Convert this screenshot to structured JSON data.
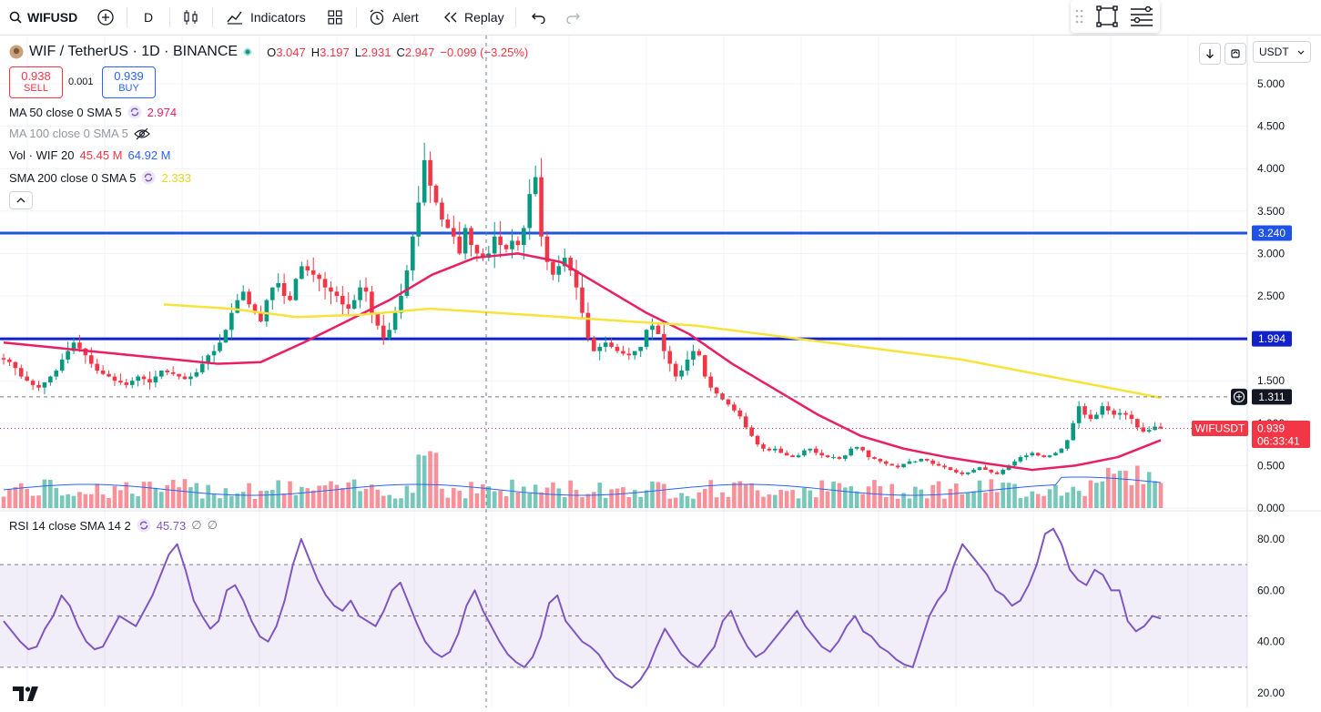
{
  "toolbar": {
    "symbol": "WIFUSD",
    "interval": "D",
    "indicators_label": "Indicators",
    "alert_label": "Alert",
    "replay_label": "Replay"
  },
  "header": {
    "title": "WIF / TetherUS · 1D · BINANCE",
    "o_label": "O",
    "o_value": "3.047",
    "h_label": "H",
    "h_value": "3.197",
    "l_label": "L",
    "l_value": "2.931",
    "c_label": "C",
    "c_value": "2.947",
    "change": "−0.099 (−3.25%)",
    "currency": "USDT"
  },
  "trade": {
    "sell_price": "0.938",
    "sell_label": "SELL",
    "spread": "0.001",
    "buy_price": "0.939",
    "buy_label": "BUY"
  },
  "legends": {
    "ma50": "MA 50 close 0 SMA 5",
    "ma50_value": "2.974",
    "ma100": "MA 100 close 0 SMA 5",
    "vol": "Vol · WIF 20",
    "vol_value1": "45.45 M",
    "vol_value2": "64.92 M",
    "sma200": "SMA 200 close 0 SMA 5",
    "sma200_value": "2.333",
    "rsi": "RSI 14 close SMA 14 2",
    "rsi_value": "45.73",
    "rsi_na1": "∅",
    "rsi_na2": "∅"
  },
  "price_axis": [
    "5.000",
    "4.500",
    "4.000",
    "3.500",
    "3.000",
    "2.500",
    "1.500",
    "1.000",
    "0.500",
    "0.000"
  ],
  "rsi_axis": [
    "80.00",
    "60.00",
    "40.00",
    "20.00"
  ],
  "tags": {
    "line_high": "3.240",
    "line_low": "1.994",
    "crosshair": "1.311",
    "symbol_tag": "WIFUSDT",
    "last_price": "0.939",
    "countdown": "06:33:41"
  },
  "colors": {
    "up": "#089981",
    "down": "#f23645",
    "ma50": "#e91e63",
    "sma200": "#ffeb3b",
    "hline": "#2962ff",
    "rsi": "#7e57c2",
    "rsi_band": "#7e57c2"
  },
  "chart_data": {
    "type": "candlestick",
    "title": "WIF / TetherUS · 1D · BINANCE",
    "horizontal_lines": [
      3.24,
      1.994
    ],
    "price_range": [
      0,
      5.2
    ],
    "close_series_approx": [
      1.75,
      1.72,
      1.65,
      1.55,
      1.5,
      1.45,
      1.42,
      1.48,
      1.55,
      1.62,
      1.75,
      1.85,
      1.95,
      1.88,
      1.8,
      1.7,
      1.62,
      1.58,
      1.55,
      1.5,
      1.48,
      1.45,
      1.5,
      1.55,
      1.52,
      1.48,
      1.55,
      1.62,
      1.6,
      1.58,
      1.55,
      1.52,
      1.55,
      1.6,
      1.7,
      1.8,
      1.85,
      1.95,
      2.1,
      2.3,
      2.45,
      2.55,
      2.4,
      2.3,
      2.2,
      2.45,
      2.6,
      2.65,
      2.5,
      2.45,
      2.7,
      2.85,
      2.8,
      2.75,
      2.7,
      2.6,
      2.55,
      2.5,
      2.4,
      2.35,
      2.45,
      2.6,
      2.55,
      2.3,
      2.15,
      2.0,
      2.1,
      2.3,
      2.5,
      2.8,
      3.2,
      3.6,
      4.1,
      3.8,
      3.6,
      3.4,
      3.3,
      3.2,
      3.0,
      3.3,
      3.1,
      3.0,
      2.95,
      3.0,
      3.2,
      3.1,
      3.05,
      3.15,
      3.1,
      3.3,
      3.7,
      3.9,
      3.2,
      2.9,
      2.75,
      2.85,
      2.95,
      2.8,
      2.6,
      2.3,
      2.0,
      1.85,
      1.9,
      1.95,
      1.9,
      1.85,
      1.82,
      1.8,
      1.85,
      1.9,
      2.1,
      2.15,
      2.05,
      1.85,
      1.7,
      1.55,
      1.62,
      1.75,
      1.85,
      1.8,
      1.55,
      1.42,
      1.35,
      1.28,
      1.22,
      1.15,
      1.08,
      0.95,
      0.85,
      0.75,
      0.7,
      0.68,
      0.7,
      0.65,
      0.62,
      0.6,
      0.62,
      0.68,
      0.7,
      0.65,
      0.62,
      0.6,
      0.6,
      0.58,
      0.62,
      0.7,
      0.72,
      0.68,
      0.6,
      0.58,
      0.55,
      0.52,
      0.5,
      0.48,
      0.52,
      0.55,
      0.55,
      0.58,
      0.56,
      0.52,
      0.5,
      0.48,
      0.45,
      0.42,
      0.4,
      0.42,
      0.45,
      0.48,
      0.45,
      0.42,
      0.4,
      0.45,
      0.5,
      0.55,
      0.6,
      0.62,
      0.65,
      0.62,
      0.6,
      0.62,
      0.65,
      0.7,
      0.8,
      1.0,
      1.2,
      1.1,
      1.05,
      1.1,
      1.2,
      1.15,
      1.1,
      1.12,
      1.1,
      1.05,
      0.95,
      0.9,
      0.92,
      0.96,
      0.939
    ],
    "ma50_approx": [
      1.95,
      1.9,
      1.85,
      1.8,
      1.75,
      1.7,
      1.72,
      1.95,
      2.2,
      2.45,
      2.75,
      2.95,
      3.0,
      2.9,
      2.6,
      2.3,
      2.05,
      1.7,
      1.4,
      1.1,
      0.85,
      0.7,
      0.6,
      0.52,
      0.45,
      0.5,
      0.6,
      0.8
    ],
    "sma200_approx": [
      2.4,
      2.35,
      2.25,
      2.28,
      2.35,
      2.3,
      2.25,
      2.2,
      2.15,
      2.05,
      1.95,
      1.85,
      1.75,
      1.6,
      1.45,
      1.3
    ],
    "rsi_approx": [
      48,
      44,
      40,
      37,
      38,
      45,
      50,
      58,
      54,
      46,
      40,
      37,
      38,
      44,
      50,
      48,
      46,
      52,
      58,
      66,
      74,
      78,
      68,
      56,
      50,
      45,
      48,
      60,
      62,
      56,
      48,
      42,
      40,
      46,
      56,
      70,
      80,
      72,
      64,
      58,
      54,
      52,
      56,
      50,
      48,
      46,
      52,
      60,
      63,
      55,
      47,
      40,
      36,
      34,
      36,
      43,
      54,
      60,
      52,
      46,
      40,
      35,
      32,
      30,
      34,
      42,
      55,
      58,
      48,
      44,
      40,
      38,
      35,
      30,
      26,
      24,
      22,
      25,
      30,
      38,
      45,
      40,
      35,
      32,
      30,
      34,
      38,
      48,
      52,
      44,
      38,
      34,
      36,
      40,
      44,
      48,
      52,
      46,
      42,
      38,
      36,
      40,
      46,
      50,
      44,
      42,
      38,
      36,
      33,
      31,
      30,
      40,
      50,
      56,
      60,
      70,
      78,
      74,
      70,
      66,
      60,
      58,
      54,
      56,
      62,
      70,
      82,
      84,
      78,
      68,
      64,
      62,
      68,
      66,
      60,
      60,
      48,
      44,
      46,
      50,
      49
    ],
    "rsi_levels": [
      70,
      50,
      30
    ],
    "rsi_range": [
      18,
      88
    ]
  }
}
